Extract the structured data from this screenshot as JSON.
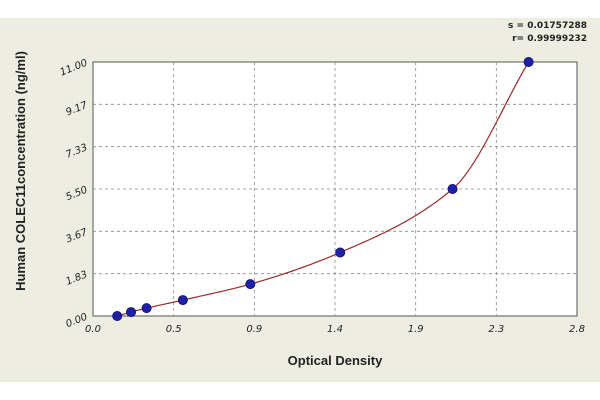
{
  "chart_data": {
    "type": "scatter",
    "xlabel": "Optical Density",
    "ylabel": "Human COLEC11concentration (ng/ml)",
    "xlim": [
      0.0,
      2.8
    ],
    "ylim": [
      0.0,
      11.0
    ],
    "x_ticks": [
      "0.0",
      "0.5",
      "0.9",
      "1.4",
      "1.9",
      "2.3",
      "2.8"
    ],
    "y_ticks": [
      "0.00",
      "1.83",
      "3.67",
      "5.50",
      "7.33",
      "9.17",
      "11.00"
    ],
    "grid": true,
    "fit_stats": {
      "s": "s = 0.01757288",
      "r": "r= 0.99999232"
    },
    "points": {
      "x": [
        0.14,
        0.22,
        0.31,
        0.52,
        0.91,
        1.43,
        2.08,
        2.52
      ],
      "y": [
        0.0,
        0.17,
        0.34,
        0.69,
        1.38,
        2.75,
        5.5,
        11.0
      ]
    },
    "colors": {
      "marker": "#1f1fa8",
      "curve": "#9b2a2a",
      "grid": "#8c8c8c",
      "background": "#edeee1",
      "plot_background": "#ffffff"
    }
  }
}
